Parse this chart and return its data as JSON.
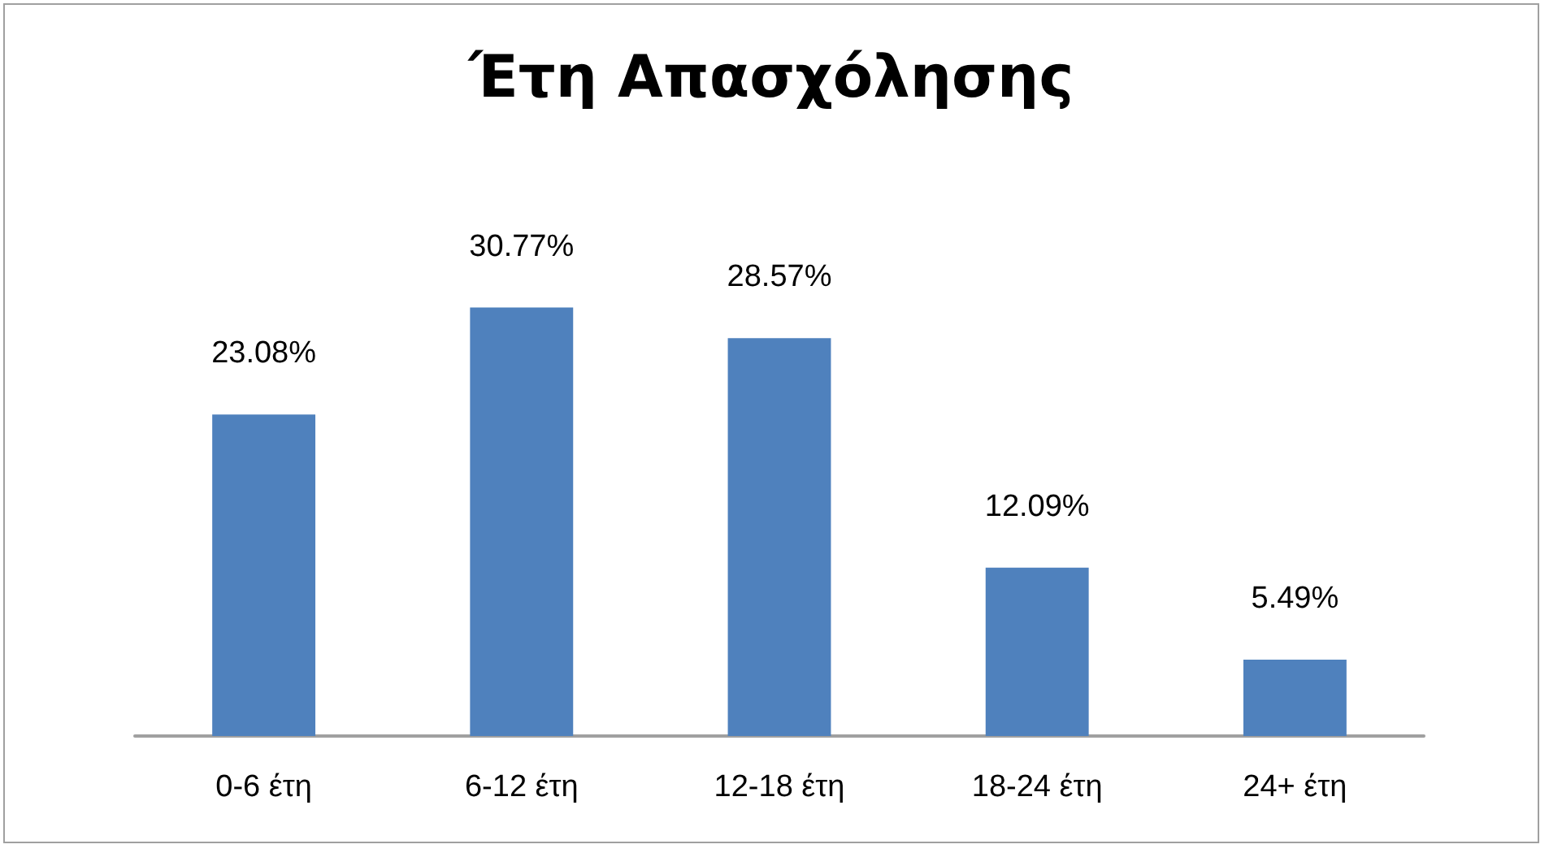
{
  "chart_data": {
    "type": "bar",
    "title": "Έτη Απασχόλησης",
    "categories": [
      "0-6 έτη",
      "6-12 έτη",
      "12-18 έτη",
      "18-24 έτη",
      "24+ έτη"
    ],
    "values": [
      23.08,
      30.77,
      28.57,
      12.09,
      5.49
    ],
    "value_labels": [
      "23.08%",
      "30.77%",
      "28.57%",
      "12.09%",
      "5.49%"
    ],
    "color": "#4f81bd"
  }
}
